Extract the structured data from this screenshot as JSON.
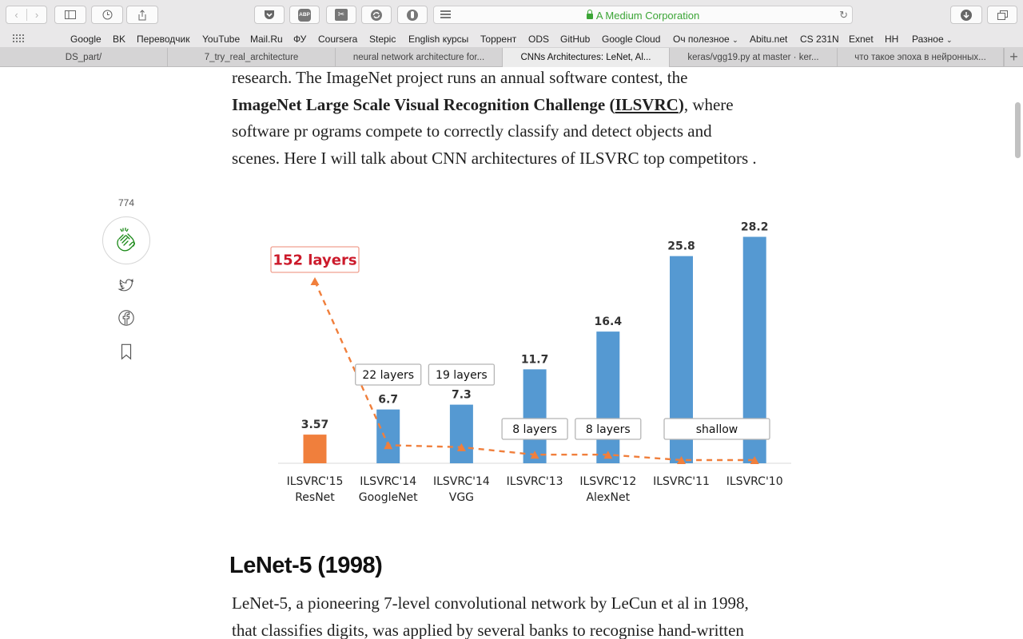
{
  "toolbar": {
    "address_text": "A Medium Corporation",
    "abp_label": "ABP"
  },
  "bookmarks": [
    "Google",
    "BK",
    "Переводчик",
    "YouTube",
    "Mail.Ru",
    "ФУ",
    "Coursera",
    "Stepic",
    "English курсы",
    "Торрент",
    "ODS",
    "GitHub",
    "Google Cloud",
    "Оч полезное",
    "Abitu.net",
    "CS 231N",
    "Exnet",
    "HH",
    "Разное"
  ],
  "tabs": [
    {
      "label": "DS_part/",
      "active": false
    },
    {
      "label": "7_try_real_architecture",
      "active": false
    },
    {
      "label": "neural network architecture for...",
      "active": false
    },
    {
      "label": "CNNs Architectures: LeNet, Al...",
      "active": true
    },
    {
      "label": "keras/vgg19.py at master · ker...",
      "active": false
    },
    {
      "label": "что такое эпоха в нейронных...",
      "active": false
    }
  ],
  "article": {
    "para1": {
      "line1": "research. The ImageNet project runs an annual software contest, the",
      "line2_bold_a": "ImageNet Large Scale Visual Recognition Challenge (",
      "line2_link": "ILSVRC",
      "line2_bold_b": ")",
      "line2_rest": ", where",
      "line3": "software pr ograms compete to correctly classify and detect objects and",
      "line4": "scenes. Here I will talk about CNN architectures of ILSVRC top competitors ."
    },
    "heading": "LeNet-5 (1998)",
    "para2": {
      "line1": "LeNet-5, a pioneering 7-level convolutional network by LeCun et al in 1998,",
      "line2": "that classifies digits, was applied by several banks to recognise hand-written"
    }
  },
  "sidebar": {
    "clap_count": "774",
    "icons": [
      "clap-icon",
      "twitter-icon",
      "facebook-icon",
      "bookmark-icon"
    ]
  },
  "chart_data": {
    "type": "bar",
    "categories": [
      [
        "ILSVRC'15",
        "ResNet"
      ],
      [
        "ILSVRC'14",
        "GoogleNet"
      ],
      [
        "ILSVRC'14",
        "VGG"
      ],
      [
        "ILSVRC'13",
        ""
      ],
      [
        "ILSVRC'12",
        "AlexNet"
      ],
      [
        "ILSVRC'11",
        ""
      ],
      [
        "ILSVRC'10",
        ""
      ]
    ],
    "values": [
      3.57,
      6.7,
      7.3,
      11.7,
      16.4,
      25.8,
      28.2
    ],
    "value_labels": [
      "3.57",
      "6.7",
      "7.3",
      "11.7",
      "16.4",
      "25.8",
      "28.2"
    ],
    "bar_colors": [
      "#f07f3c",
      "#5599d2",
      "#5599d2",
      "#5599d2",
      "#5599d2",
      "#5599d2",
      "#5599d2"
    ],
    "depth_series": {
      "values": [
        152,
        22,
        19,
        8,
        8,
        0,
        0
      ],
      "color": "#f07f3c",
      "style": "dashed"
    },
    "annotations": [
      "152 layers",
      "22 layers",
      "19 layers",
      "8 layers",
      "8 layers",
      "shallow"
    ],
    "highlight_color": "#cc1a2b",
    "ylim": [
      0,
      30
    ],
    "title": "",
    "xlabel": "",
    "ylabel": ""
  }
}
